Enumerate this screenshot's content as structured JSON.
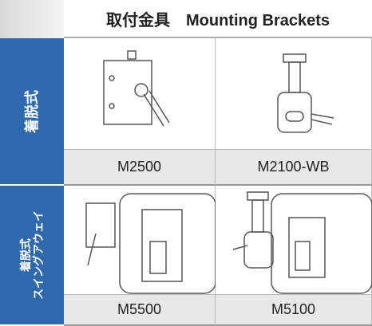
{
  "header": {
    "title": "取付金具　Mounting Brackets"
  },
  "groups": [
    {
      "label_lines": [
        "着脱式"
      ],
      "items": [
        "M2500",
        "M2100-WB"
      ]
    },
    {
      "label_lines": [
        "着脱式",
        "スイングアウェイ"
      ],
      "items": [
        "M5500",
        "M5100"
      ]
    }
  ]
}
